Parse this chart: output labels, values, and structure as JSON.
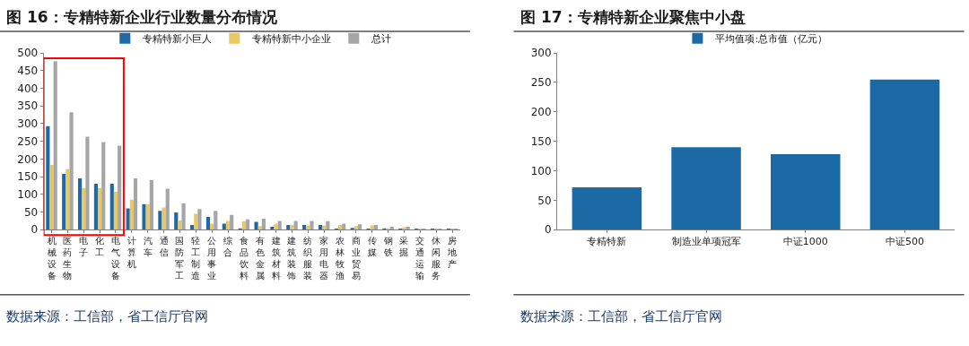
{
  "chart_data": [
    {
      "type": "bar",
      "title": "图 16：专精特新企业行业数量分布情况",
      "categories": [
        "机械设备",
        "医药生物",
        "电子",
        "化工",
        "电气设备",
        "计算机",
        "汽车",
        "通信",
        "国防军工",
        "轻工制造",
        "公用事业",
        "综合",
        "食品饮料",
        "有色金属",
        "建筑材料",
        "建筑装饰",
        "纺织服装",
        "家用电器",
        "农林牧渔",
        "商业贸易",
        "传媒",
        "钢铁",
        "采掘",
        "交通运输",
        "休闲服务",
        "房地产"
      ],
      "series": [
        {
          "name": "专精特新小巨人",
          "color": "#1f6aa5",
          "values": [
            293,
            158,
            145,
            130,
            130,
            60,
            72,
            53,
            49,
            13,
            36,
            17,
            4,
            22,
            8,
            13,
            13,
            13,
            3,
            5,
            2,
            4,
            2,
            1,
            1,
            1
          ]
        },
        {
          "name": "专精特新中小企业",
          "color": "#e8c765",
          "values": [
            183,
            172,
            118,
            118,
            108,
            85,
            72,
            63,
            26,
            45,
            17,
            25,
            24,
            10,
            17,
            13,
            12,
            12,
            13,
            10,
            12,
            4,
            7,
            2,
            1,
            1
          ]
        },
        {
          "name": "总计",
          "color": "#a6a6a6",
          "values": [
            477,
            332,
            263,
            248,
            238,
            145,
            141,
            116,
            75,
            58,
            53,
            42,
            29,
            31,
            25,
            25,
            25,
            24,
            17,
            15,
            13,
            8,
            8,
            3,
            2,
            2
          ]
        }
      ],
      "ylim": [
        0,
        500
      ],
      "yticks": [
        0,
        50,
        100,
        150,
        200,
        250,
        300,
        350,
        400,
        450,
        500
      ],
      "legend": "top",
      "annotations": [
        "数据来源：工信部，省工信厅官网"
      ]
    },
    {
      "type": "bar",
      "title": "图 17：专精特新企业聚焦中小盘",
      "categories": [
        "专精特新",
        "制造业单项冠军",
        "中证1000",
        "中证500"
      ],
      "series": [
        {
          "name": "平均值项:总市值（亿元）",
          "color": "#1c6aa5",
          "values": [
            72,
            140,
            128,
            255
          ]
        }
      ],
      "ylim": [
        0,
        300
      ],
      "yticks": [
        0,
        50,
        100,
        150,
        200,
        250,
        300
      ],
      "legend": "top",
      "annotations": [
        "数据来源：工信部，省工信厅官网"
      ]
    }
  ]
}
